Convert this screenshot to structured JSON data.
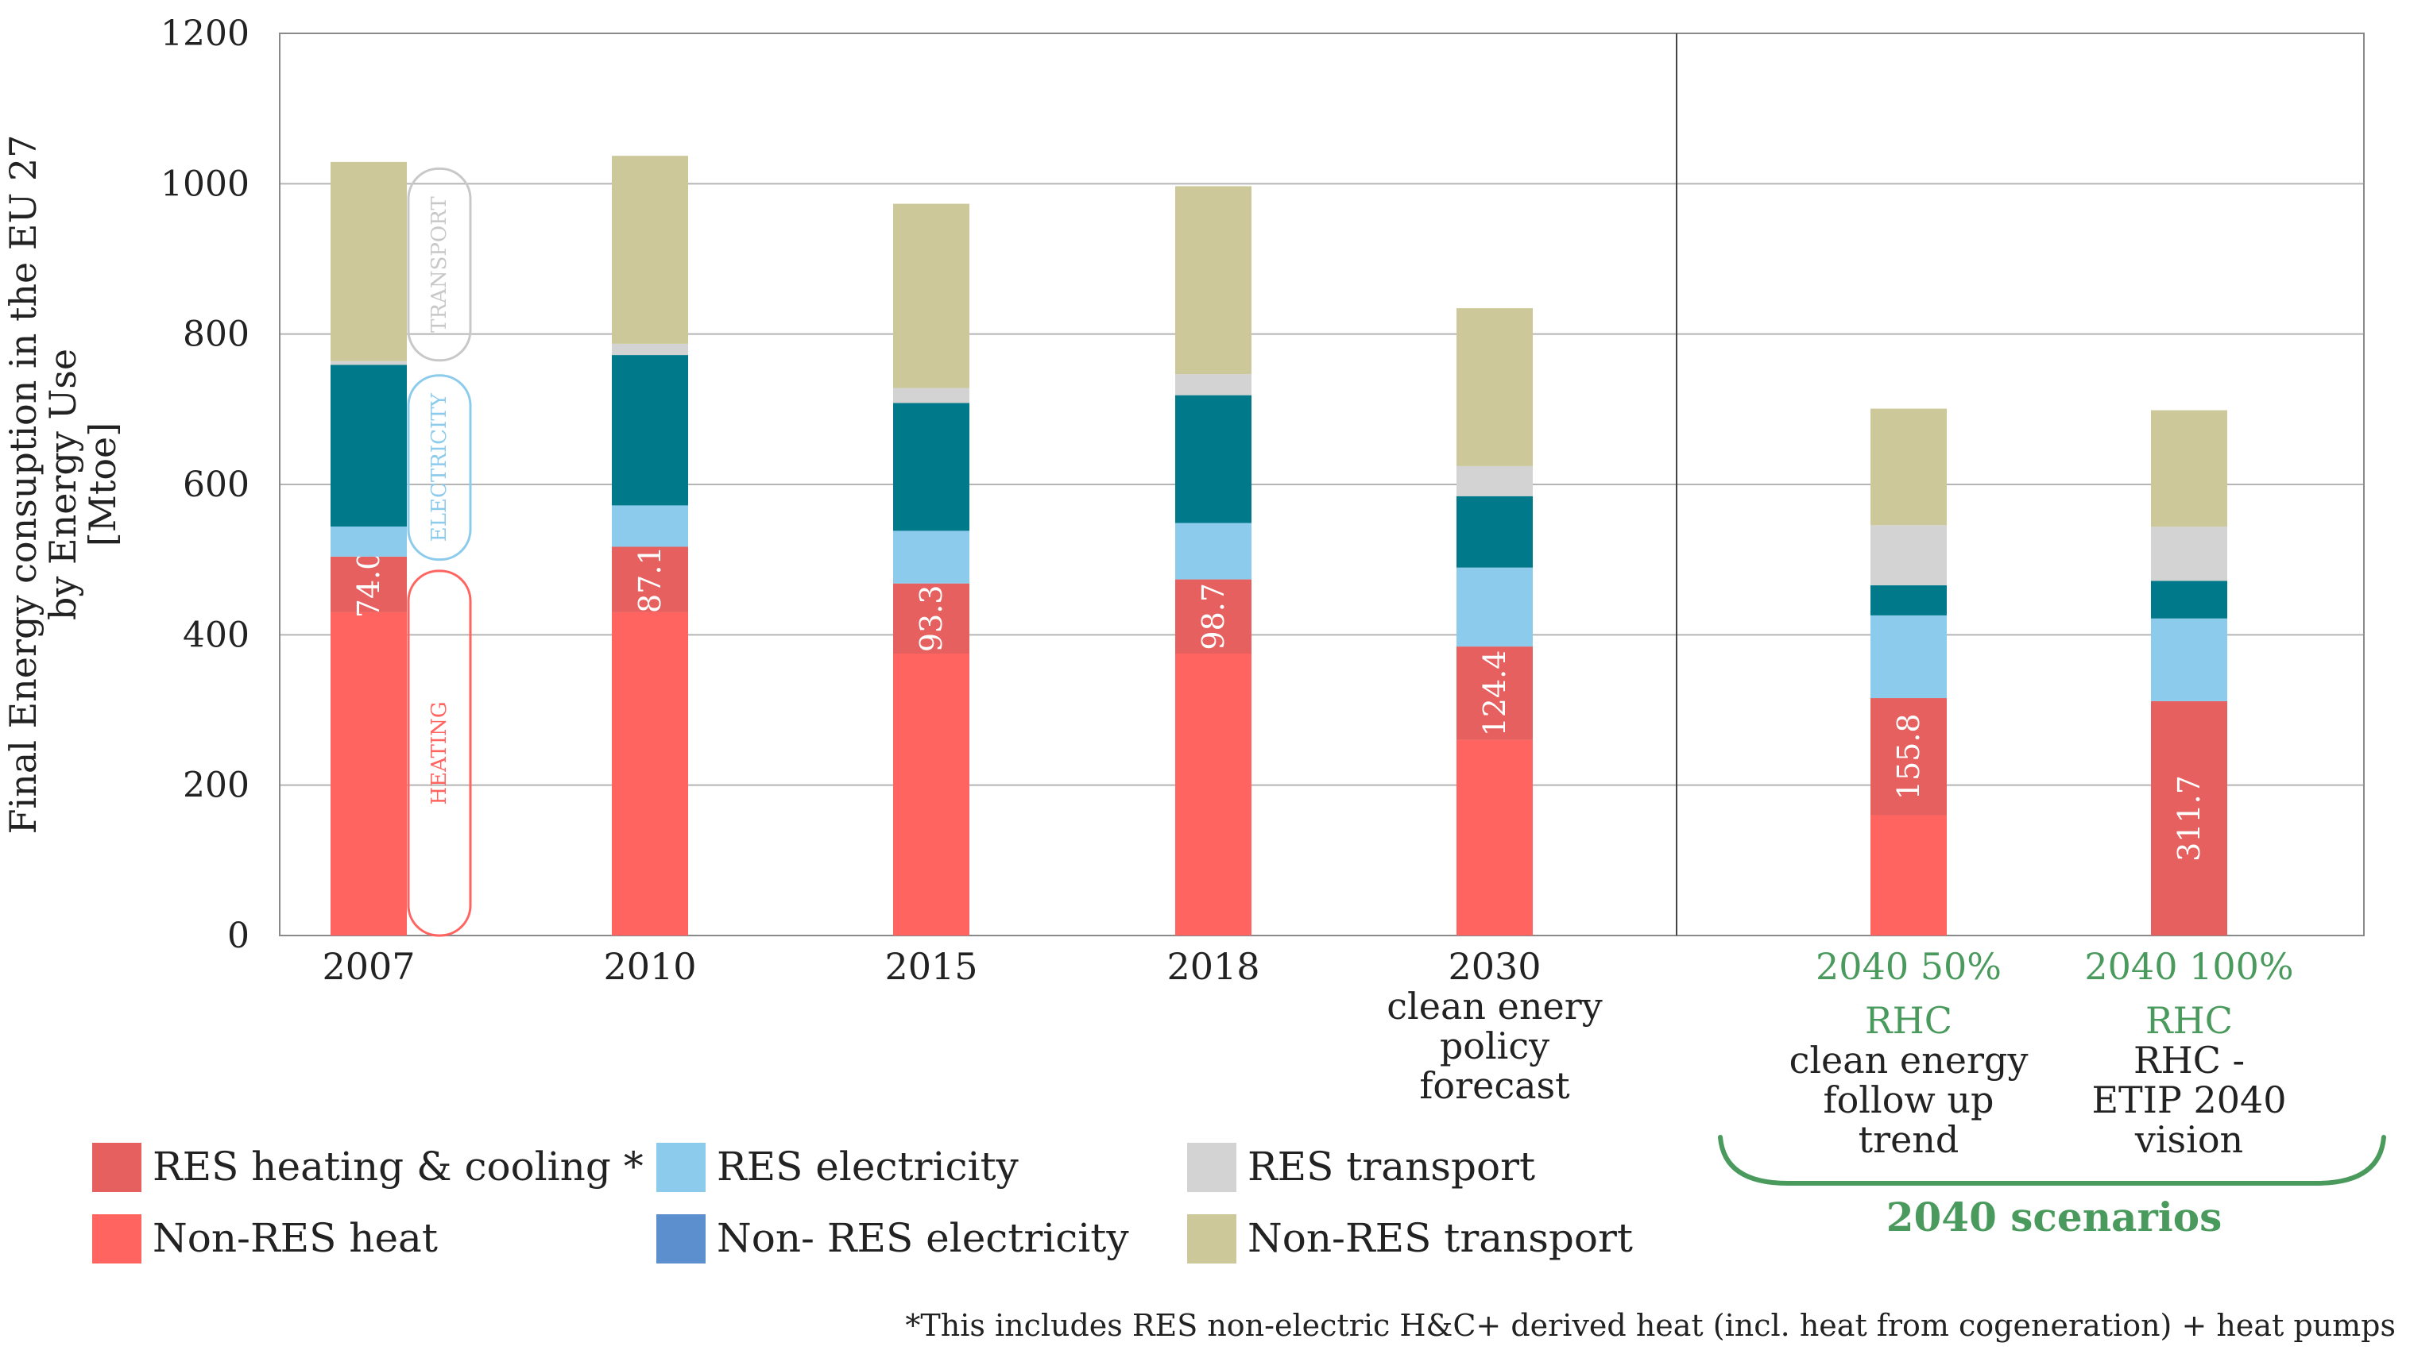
{
  "chart_data": {
    "type": "bar",
    "stacked": true,
    "ylabel": "Final Energy consuption in the EU 27 by Energy Use [Mtoe]",
    "ylabel_lines": [
      "Final Energy consuption in the EU 27",
      "by Energy Use",
      "[Mtoe]"
    ],
    "ylim": [
      0,
      1200
    ],
    "yticks": [
      0,
      200,
      400,
      600,
      800,
      1000,
      1200
    ],
    "grid": true,
    "categories": [
      {
        "lines": [
          "2007"
        ],
        "color": "#222222"
      },
      {
        "lines": [
          "2010"
        ],
        "color": "#222222"
      },
      {
        "lines": [
          "2015"
        ],
        "color": "#222222"
      },
      {
        "lines": [
          "2018"
        ],
        "color": "#222222"
      },
      {
        "lines": [
          "2030",
          "clean enery",
          "policy",
          "forecast"
        ],
        "color": "#222222"
      },
      {
        "lines": [
          "2040  50%",
          "RHC",
          "clean energy",
          "follow up",
          "trend"
        ],
        "green_lines": 2
      },
      {
        "lines": [
          "2040 100%",
          "RHC",
          "RHC -",
          "ETIP 2040",
          "vision"
        ],
        "green_lines": 2
      }
    ],
    "series": [
      {
        "name": "Non-RES heat",
        "color": "#ff6461",
        "values": [
          430,
          430,
          375,
          375,
          260,
          160,
          0
        ]
      },
      {
        "name": "RES heating & cooling *",
        "color": "#e5605f",
        "values": [
          74.0,
          87.1,
          93.3,
          98.7,
          124.4,
          155.8,
          311.7
        ]
      },
      {
        "name": "RES electricity",
        "color": "#8ccbeb",
        "values": [
          40,
          55,
          70,
          75,
          105,
          110,
          110
        ]
      },
      {
        "name": "Non- RES electricity",
        "color": "#007a8a",
        "values": [
          215,
          200,
          170,
          170,
          95,
          40,
          50
        ]
      },
      {
        "name": "RES transport",
        "color": "#d3d3d3",
        "values": [
          5,
          15,
          20,
          28,
          40,
          80,
          72
        ]
      },
      {
        "name": "Non-RES transport",
        "color": "#ccc899",
        "values": [
          265,
          250,
          245,
          250,
          210,
          155,
          155
        ]
      }
    ],
    "data_labels": [
      "74.0",
      "87.1",
      "93.3",
      "98.7",
      "124.4",
      "155.8",
      "311.7"
    ],
    "group_annotations": [
      "TRANSPORT",
      "ELECTRICITY",
      "HEATING"
    ],
    "legend": [
      {
        "label": "RES heating & cooling *",
        "color": "#e5605f"
      },
      {
        "label": "RES electricity",
        "color": "#8ccbeb"
      },
      {
        "label": "RES transport",
        "color": "#d3d3d3"
      },
      {
        "label": "Non-RES heat",
        "color": "#ff6461"
      },
      {
        "label": "Non-  RES electricity",
        "color": "#5b8fce"
      },
      {
        "label": "Non-RES transport",
        "color": "#ccc899"
      }
    ],
    "scenario_bracket_label": "2040 scenarios",
    "footnote": "*This includes RES non-electric H&C+ derived heat (incl. heat from cogeneration) + heat pumps"
  },
  "colors": {
    "scenario_green": "#4a9a5e",
    "transport_outline": "#c8c8c8",
    "electricity_outline": "#8ccbeb",
    "heating_outline": "#ff6461"
  }
}
